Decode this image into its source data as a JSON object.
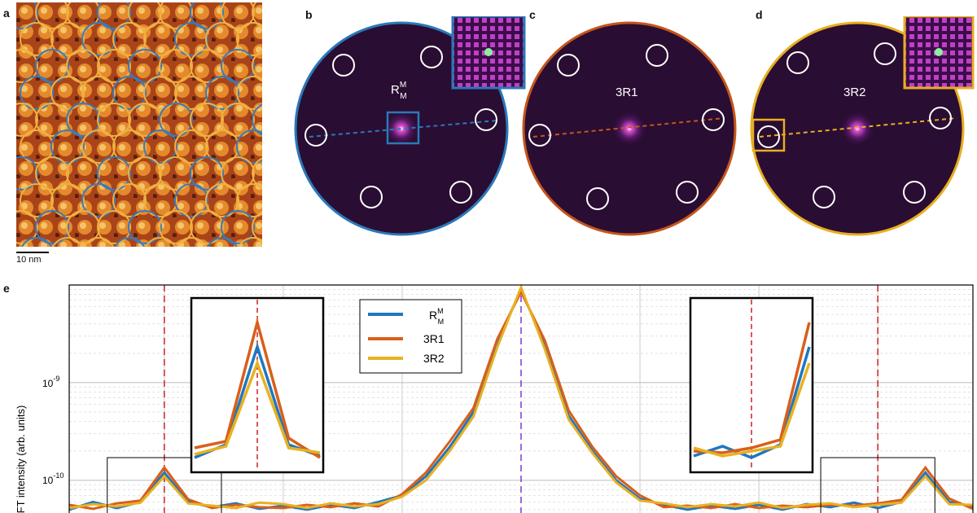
{
  "panels": {
    "a": {
      "letter": "a",
      "scalebar_label": "10 nm"
    },
    "b": {
      "letter": "b",
      "label_main": "R",
      "label_sup": "M",
      "label_sub": "M",
      "border_color": "#2b78b8"
    },
    "c": {
      "letter": "c",
      "label": "3R1",
      "border_color": "#c4551c"
    },
    "d": {
      "letter": "d",
      "label": "3R2",
      "border_color": "#e8ae22"
    },
    "e": {
      "letter": "e"
    }
  },
  "colors": {
    "blue": "#1f77c0",
    "orange": "#d95f1a",
    "yellow": "#e8b122",
    "marker_red": "#cc2222",
    "marker_purple": "#7a3ad0"
  },
  "chart_data": {
    "type": "line",
    "ylabel": "FFT intensity (arb. units)",
    "yscale": "log",
    "ytick_labels": [
      {
        "base": "10",
        "exp": "-9"
      },
      {
        "base": "10",
        "exp": "-10"
      }
    ],
    "legend": {
      "placement": "top-center",
      "entries": [
        {
          "main": "R",
          "sup": "M",
          "sub": "M",
          "color": "#1f77c0"
        },
        {
          "main": "3R1",
          "color": "#d95f1a"
        },
        {
          "main": "3R2",
          "color": "#e8b122"
        }
      ]
    },
    "x": [
      -1.0,
      -0.95,
      -0.9,
      -0.85,
      -0.8,
      -0.75,
      -0.7,
      -0.65,
      -0.6,
      -0.55,
      -0.5,
      -0.45,
      -0.4,
      -0.35,
      -0.3,
      -0.25,
      -0.2,
      -0.15,
      -0.1,
      -0.05,
      0.0,
      0.05,
      0.1,
      0.15,
      0.2,
      0.25,
      0.3,
      0.35,
      0.4,
      0.45,
      0.5,
      0.55,
      0.6,
      0.65,
      0.7,
      0.75,
      0.8,
      0.85,
      0.9,
      0.95,
      1.0
    ],
    "series": [
      {
        "name": "R_M^M",
        "color": "#1f77c0",
        "values": [
          5.5e-11,
          5e-11,
          6e-11,
          5.2e-11,
          6e-11,
          1.2e-10,
          6e-11,
          5.3e-11,
          5.8e-11,
          5.1e-11,
          5.5e-11,
          5e-11,
          5.6e-11,
          5.2e-11,
          6e-11,
          7e-11,
          1.1e-10,
          2.2e-10,
          5e-10,
          2.6e-09,
          9e-09,
          2.4e-09,
          4.6e-10,
          2e-10,
          1e-10,
          6.5e-11,
          5.6e-11,
          5e-11,
          5.5e-11,
          5.1e-11,
          5.6e-11,
          5e-11,
          5.7e-11,
          5.3e-11,
          5.9e-11,
          5.2e-11,
          6e-11,
          1.2e-10,
          6e-11,
          5.4e-11,
          5.6e-11
        ]
      },
      {
        "name": "3R1",
        "color": "#d95f1a",
        "values": [
          5.3e-11,
          5.6e-11,
          5.1e-11,
          5.8e-11,
          6.2e-11,
          1.35e-10,
          6.4e-11,
          5.2e-11,
          5.6e-11,
          5.3e-11,
          5.2e-11,
          5.6e-11,
          5.3e-11,
          5.8e-11,
          5.4e-11,
          7.2e-11,
          1.2e-10,
          2.5e-10,
          5.5e-10,
          2.8e-09,
          8.5e-09,
          2.7e-09,
          5.2e-10,
          2.2e-10,
          1.1e-10,
          7e-11,
          5.3e-11,
          5.5e-11,
          5.2e-11,
          5.7e-11,
          5.2e-11,
          5.5e-11,
          5.3e-11,
          5.6e-11,
          5.5e-11,
          5.8e-11,
          6.3e-11,
          1.35e-10,
          6.5e-11,
          5.1e-11,
          5.4e-11
        ]
      },
      {
        "name": "3R2",
        "color": "#e8b122",
        "values": [
          5.6e-11,
          5.2e-11,
          5.7e-11,
          5.4e-11,
          5.9e-11,
          1.1e-10,
          5.8e-11,
          5.5e-11,
          5.2e-11,
          5.9e-11,
          5.7e-11,
          5.2e-11,
          5.8e-11,
          5.4e-11,
          5.7e-11,
          6.8e-11,
          1e-10,
          2e-10,
          4.5e-10,
          2.3e-09,
          9.5e-09,
          2.2e-09,
          4.2e-10,
          1.9e-10,
          9.5e-11,
          6.2e-11,
          5.8e-11,
          5.3e-11,
          5.7e-11,
          5.4e-11,
          5.9e-11,
          5.2e-11,
          5.6e-11,
          5.8e-11,
          5.3e-11,
          5.6e-11,
          5.9e-11,
          1.1e-10,
          5.7e-11,
          5.6e-11,
          5.2e-11
        ]
      }
    ],
    "markers": [
      {
        "x": -0.75,
        "color": "#cc2222",
        "style": "dashed"
      },
      {
        "x": 0.0,
        "color": "#7a3ad0",
        "style": "dashed"
      },
      {
        "x": 0.75,
        "color": "#cc2222",
        "style": "dashed"
      }
    ],
    "ylim": [
      4.2e-11,
      1e-08
    ],
    "xlim": [
      -0.95,
      0.95
    ],
    "grid": true
  }
}
